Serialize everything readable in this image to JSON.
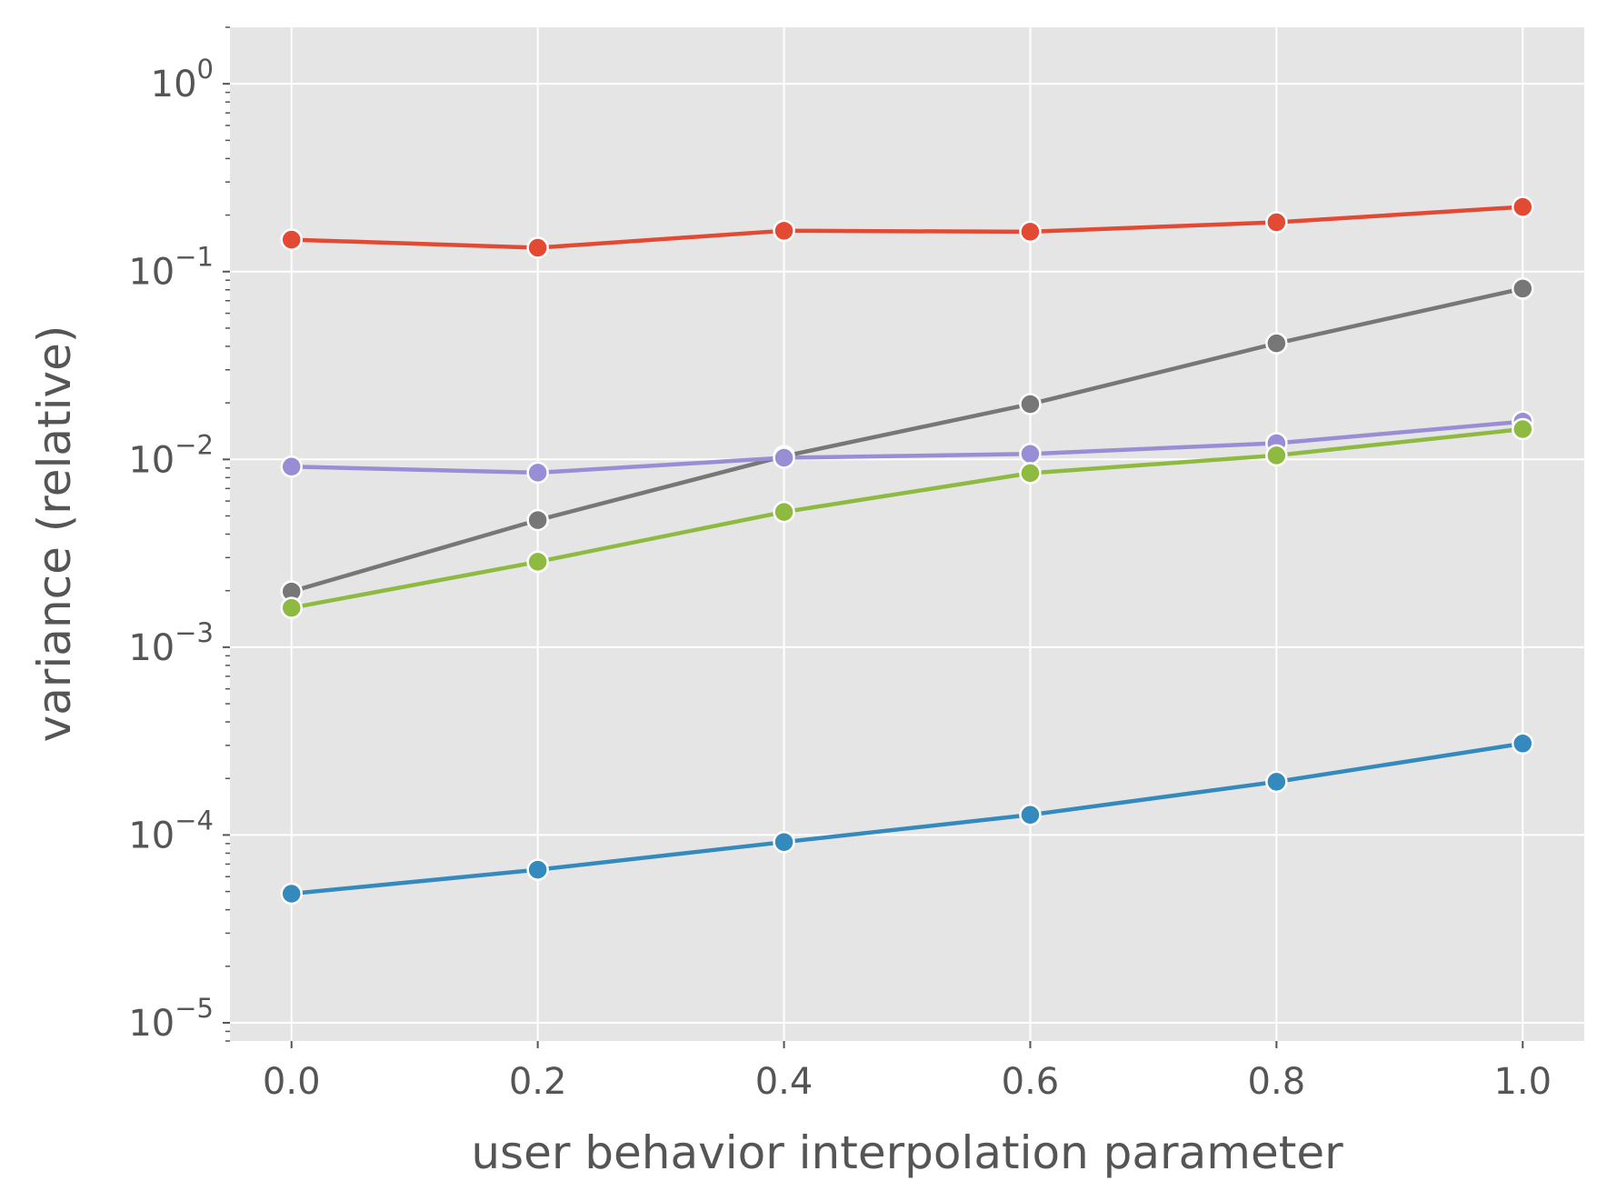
{
  "chart_data": {
    "type": "line",
    "xlabel": "user behavior interpolation parameter",
    "ylabel": "variance (relative)",
    "x": [
      0.0,
      0.2,
      0.4,
      0.6,
      0.8,
      1.0
    ],
    "xlim": [
      -0.05,
      1.05
    ],
    "ylim": [
      8e-06,
      2.0
    ],
    "yscale": "log",
    "grid": true,
    "xticks": [
      {
        "value": 0.0,
        "label": "0.0"
      },
      {
        "value": 0.2,
        "label": "0.2"
      },
      {
        "value": 0.4,
        "label": "0.4"
      },
      {
        "value": 0.6,
        "label": "0.6"
      },
      {
        "value": 0.8,
        "label": "0.8"
      },
      {
        "value": 1.0,
        "label": "1.0"
      }
    ],
    "yticks": [
      {
        "value": 1e-05,
        "base": "10",
        "exponent": "−5"
      },
      {
        "value": 0.0001,
        "base": "10",
        "exponent": "−4"
      },
      {
        "value": 0.001,
        "base": "10",
        "exponent": "−3"
      },
      {
        "value": 0.01,
        "base": "10",
        "exponent": "−2"
      },
      {
        "value": 0.1,
        "base": "10",
        "exponent": "−1"
      },
      {
        "value": 1,
        "base": "10",
        "exponent": "0"
      }
    ],
    "series": [
      {
        "color": "#E24A33",
        "values": [
          0.148,
          0.134,
          0.165,
          0.163,
          0.183,
          0.221
        ]
      },
      {
        "color": "#777777",
        "values": [
          0.00198,
          0.00475,
          0.0104,
          0.0197,
          0.0415,
          0.0812
        ]
      },
      {
        "color": "#988ED5",
        "values": [
          0.00915,
          0.0085,
          0.0102,
          0.0107,
          0.0122,
          0.0159
        ]
      },
      {
        "color": "#8EBA42",
        "values": [
          0.00162,
          0.00285,
          0.00525,
          0.00845,
          0.0105,
          0.0145
        ]
      },
      {
        "color": "#348ABD",
        "values": [
          4.87e-05,
          6.53e-05,
          9.17e-05,
          0.000128,
          0.000192,
          0.000307
        ]
      }
    ]
  }
}
